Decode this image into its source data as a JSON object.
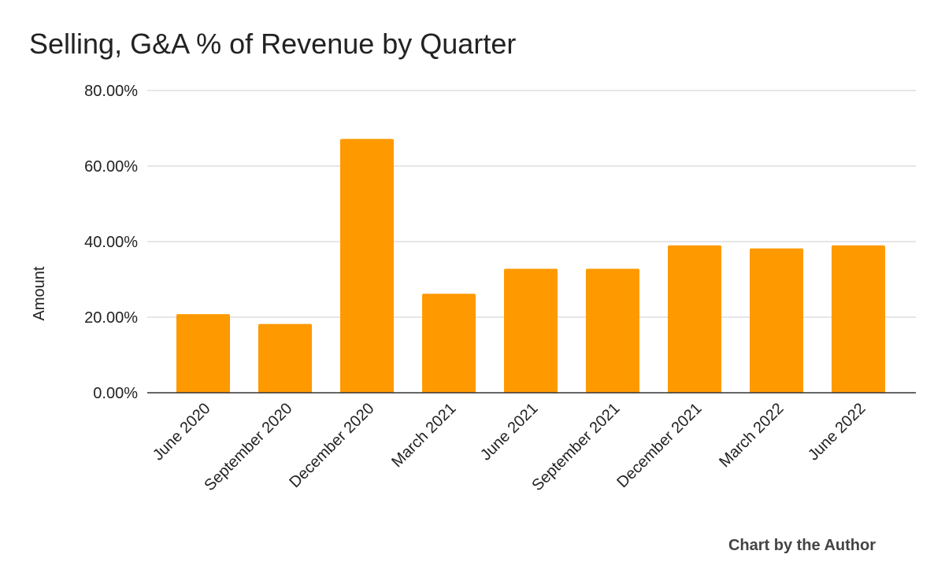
{
  "chart_data": {
    "type": "bar",
    "title": "Selling, G&A % of Revenue by Quarter",
    "xlabel": "",
    "ylabel": "Amount",
    "categories": [
      "June 2020",
      "September 2020",
      "December 2020",
      "March 2021",
      "June 2021",
      "September 2021",
      "December 2021",
      "March 2022",
      "June 2022"
    ],
    "values": [
      20.8,
      18.2,
      67.2,
      26.2,
      32.8,
      32.8,
      39.0,
      38.2,
      39.0
    ],
    "value_unit": "%",
    "ylim": [
      0,
      80
    ],
    "yticks": [
      0,
      20,
      40,
      60,
      80
    ],
    "ytick_labels": [
      "0.00%",
      "20.00%",
      "40.00%",
      "60.00%",
      "80.00%"
    ],
    "grid": true,
    "legend": "none",
    "bar_color": "#FF9900",
    "gridline_color": "#CCCCCC",
    "baseline_color": "#333333"
  },
  "credit": "Chart by the Author"
}
